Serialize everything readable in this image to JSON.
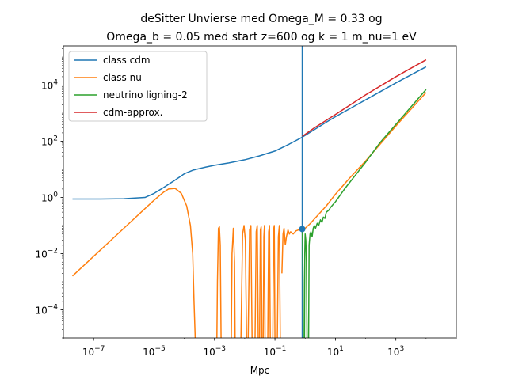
{
  "chart_data": {
    "type": "line",
    "title_line1": "deSitter Unvierse med Omega_M = 0.33 og",
    "title_line2": "Omega_b = 0.05 med start z=600 og k = 1 m_nu=1 eV",
    "xlabel": "Mpc",
    "ylabel": "",
    "x_scale": "log",
    "y_scale": "log",
    "xlim": [
      1e-08,
      100000.0
    ],
    "ylim": [
      1e-05,
      250000.0
    ],
    "x_ticks": [
      {
        "value": 1e-07,
        "label": "10^-7",
        "base": "10",
        "exp": "−7"
      },
      {
        "value": 1e-05,
        "label": "10^-5",
        "base": "10",
        "exp": "−5"
      },
      {
        "value": 0.001,
        "label": "10^-3",
        "base": "10",
        "exp": "−3"
      },
      {
        "value": 0.1,
        "label": "10^-1",
        "base": "10",
        "exp": "−1"
      },
      {
        "value": 10.0,
        "label": "10^1",
        "base": "10",
        "exp": "1"
      },
      {
        "value": 1000.0,
        "label": "10^3",
        "base": "10",
        "exp": "3"
      }
    ],
    "y_ticks": [
      {
        "value": 0.0001,
        "label": "10^-4",
        "base": "10",
        "exp": "−4"
      },
      {
        "value": 0.01,
        "label": "10^-2",
        "base": "10",
        "exp": "−2"
      },
      {
        "value": 1.0,
        "label": "10^0",
        "base": "10",
        "exp": "0"
      },
      {
        "value": 100.0,
        "label": "10^2",
        "base": "10",
        "exp": "2"
      },
      {
        "value": 10000.0,
        "label": "10^4",
        "base": "10",
        "exp": "4"
      }
    ],
    "grid": false,
    "legend_position": "top-left",
    "vertical_line": {
      "x": 0.8,
      "color": "#1f77b4"
    },
    "marker_point": {
      "x": 0.8,
      "y": 0.075,
      "color": "#1f77b4"
    },
    "series": [
      {
        "name": "class cdm",
        "color": "#1f77b4",
        "segments": [
          [
            [
              2e-08,
              0.88
            ],
            [
              1e-07,
              0.88
            ],
            [
              1e-06,
              0.9
            ],
            [
              5e-06,
              1.0
            ],
            [
              1e-05,
              1.4
            ],
            [
              2e-05,
              2.2
            ],
            [
              5e-05,
              4.2
            ],
            [
              0.0001,
              7.0
            ],
            [
              0.0002,
              9.5
            ],
            [
              0.0005,
              12
            ],
            [
              0.001,
              14
            ],
            [
              0.003,
              17
            ],
            [
              0.01,
              22
            ],
            [
              0.03,
              30
            ],
            [
              0.1,
              45
            ],
            [
              0.3,
              80
            ],
            [
              0.8,
              140
            ],
            [
              2,
              260
            ],
            [
              5,
              480
            ],
            [
              10,
              750
            ],
            [
              100,
              3000
            ],
            [
              1000,
              12000
            ],
            [
              10000,
              45000
            ]
          ]
        ]
      },
      {
        "name": "class nu",
        "color": "#ff7f0e",
        "segments": [
          [
            [
              2e-08,
              0.0016
            ],
            [
              1e-07,
              0.008
            ],
            [
              1e-06,
              0.08
            ],
            [
              5e-06,
              0.4
            ],
            [
              1e-05,
              0.8
            ],
            [
              2e-05,
              1.5
            ],
            [
              3e-05,
              2.0
            ],
            [
              5e-05,
              2.1
            ],
            [
              8e-05,
              1.4
            ],
            [
              0.00012,
              0.5
            ],
            [
              0.00016,
              0.1
            ],
            [
              0.00019,
              0.01
            ],
            [
              0.00021,
              0.0002
            ],
            [
              0.00023,
              1e-05
            ]
          ],
          [
            [
              0.0012,
              1e-05
            ],
            [
              0.00125,
              0.001
            ],
            [
              0.00135,
              0.08
            ],
            [
              0.00145,
              0.09
            ],
            [
              0.00155,
              0.02
            ],
            [
              0.00165,
              1e-05
            ]
          ],
          [
            [
              0.0036,
              1e-05
            ],
            [
              0.0038,
              0.01
            ],
            [
              0.0042,
              0.08
            ],
            [
              0.0046,
              0.005
            ],
            [
              0.0048,
              1e-05
            ]
          ],
          [
            [
              0.0075,
              1e-05
            ],
            [
              0.0085,
              0.05
            ],
            [
              0.0095,
              0.1
            ],
            [
              0.0105,
              0.03
            ],
            [
              0.0115,
              1e-05
            ]
          ],
          [
            [
              0.013,
              1e-05
            ],
            [
              0.0145,
              0.07
            ],
            [
              0.016,
              0.1
            ],
            [
              0.0175,
              1e-05
            ]
          ],
          [
            [
              0.022,
              1e-05
            ],
            [
              0.024,
              0.06
            ],
            [
              0.026,
              0.1
            ],
            [
              0.028,
              1e-05
            ]
          ],
          [
            [
              0.031,
              1e-05
            ],
            [
              0.033,
              0.07
            ],
            [
              0.035,
              0.09
            ],
            [
              0.037,
              1e-05
            ]
          ],
          [
            [
              0.041,
              1e-05
            ],
            [
              0.043,
              0.04
            ],
            [
              0.045,
              0.1
            ],
            [
              0.047,
              1e-05
            ]
          ],
          [
            [
              0.058,
              1e-05
            ],
            [
              0.062,
              0.06
            ],
            [
              0.066,
              0.1
            ],
            [
              0.07,
              1e-05
            ]
          ],
          [
            [
              0.085,
              1e-05
            ],
            [
              0.09,
              0.07
            ],
            [
              0.095,
              0.1
            ],
            [
              0.1,
              1e-05
            ]
          ],
          [
            [
              0.12,
              1e-05
            ],
            [
              0.13,
              0.04
            ],
            [
              0.14,
              0.1
            ],
            [
              0.15,
              1e-05
            ]
          ],
          [
            [
              0.17,
              0.002
            ],
            [
              0.185,
              0.05
            ],
            [
              0.2,
              0.08
            ],
            [
              0.22,
              0.02
            ]
          ],
          [
            [
              0.22,
              0.02
            ],
            [
              0.24,
              0.04
            ],
            [
              0.27,
              0.07
            ],
            [
              0.3,
              0.05
            ],
            [
              0.33,
              0.06
            ],
            [
              0.4,
              0.05
            ],
            [
              0.5,
              0.065
            ],
            [
              0.6,
              0.07
            ],
            [
              0.7,
              0.075
            ],
            [
              0.8,
              0.075
            ],
            [
              1,
              0.08
            ],
            [
              1.5,
              0.12
            ],
            [
              2,
              0.17
            ],
            [
              5,
              0.5
            ],
            [
              10,
              1.3
            ],
            [
              30,
              5
            ],
            [
              100,
              20
            ],
            [
              1000,
              350
            ],
            [
              10000,
              5500
            ]
          ]
        ]
      },
      {
        "name": "neutrino ligning-2",
        "color": "#2ca02c",
        "segments": [
          [
            [
              0.8,
              0.075
            ],
            [
              0.82,
              0.03
            ],
            [
              0.85,
              0.001
            ],
            [
              0.86,
              1e-05
            ]
          ],
          [
            [
              0.95,
              1e-05
            ],
            [
              0.97,
              0.01
            ],
            [
              1.0,
              0.05
            ],
            [
              1.05,
              0.03
            ],
            [
              1.1,
              0.005
            ],
            [
              1.15,
              1e-05
            ]
          ],
          [
            [
              1.3,
              1e-05
            ],
            [
              1.35,
              0.02
            ],
            [
              1.45,
              0.05
            ],
            [
              1.55,
              0.06
            ],
            [
              1.7,
              0.04
            ],
            [
              1.85,
              0.08
            ],
            [
              2,
              0.1
            ],
            [
              2.2,
              0.08
            ],
            [
              2.5,
              0.12
            ],
            [
              2.8,
              0.1
            ],
            [
              3.2,
              0.16
            ],
            [
              3.6,
              0.13
            ],
            [
              4,
              0.2
            ],
            [
              4.5,
              0.18
            ],
            [
              5,
              0.3
            ],
            [
              6,
              0.35
            ],
            [
              7,
              0.45
            ],
            [
              10,
              0.7
            ],
            [
              20,
              2
            ],
            [
              50,
              7
            ],
            [
              100,
              18
            ],
            [
              300,
              90
            ],
            [
              1000,
              400
            ],
            [
              10000,
              7000
            ]
          ]
        ]
      },
      {
        "name": "cdm-approx.",
        "color": "#d62728",
        "segments": [
          [
            [
              0.8,
              150
            ],
            [
              2,
              300
            ],
            [
              10,
              900
            ],
            [
              100,
              4500
            ],
            [
              1000,
              20000
            ],
            [
              10000,
              80000
            ]
          ]
        ]
      }
    ]
  }
}
